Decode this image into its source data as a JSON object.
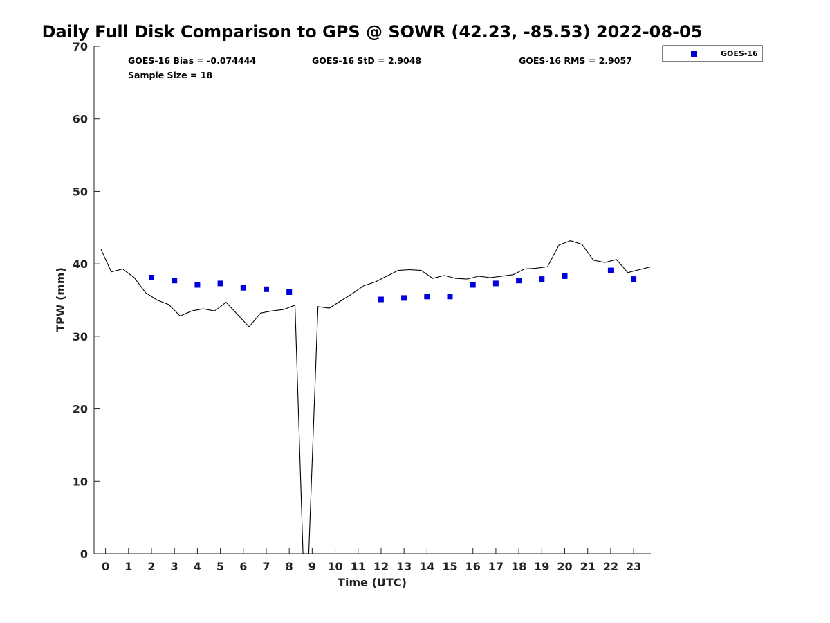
{
  "chart_data": {
    "type": "scatter",
    "title": "Daily Full Disk Comparison to GPS @ SOWR (42.23, -85.53) 2022-08-05",
    "xlabel": "Time (UTC)",
    "ylabel": "TPW (mm)",
    "xlim": [
      -0.5,
      23.75
    ],
    "ylim": [
      0,
      70
    ],
    "x_ticks": [
      0,
      1,
      2,
      3,
      4,
      5,
      6,
      7,
      8,
      9,
      10,
      11,
      12,
      13,
      14,
      15,
      16,
      17,
      18,
      19,
      20,
      21,
      22,
      23
    ],
    "y_ticks": [
      0,
      10,
      20,
      30,
      40,
      50,
      60,
      70
    ],
    "grid": false,
    "legend": {
      "position": "top-right",
      "entries": [
        "GOES-16"
      ]
    },
    "colors": {
      "goes16": "#0000dd",
      "gps": "#000000"
    },
    "stats": {
      "bias": "GOES-16 Bias = -0.074444",
      "std": "GOES-16 StD = 2.9048",
      "rms": "GOES-16 RMS = 2.9057",
      "sample": "Sample Size = 18"
    },
    "series": [
      {
        "name": "GOES-16",
        "type": "scatter",
        "x": [
          2,
          3,
          4,
          5,
          6,
          7,
          8,
          12,
          13,
          14,
          15,
          16,
          17,
          18,
          19,
          20,
          22,
          23
        ],
        "y": [
          38.1,
          37.7,
          37.1,
          37.3,
          36.7,
          36.5,
          36.1,
          35.1,
          35.3,
          35.5,
          35.5,
          37.1,
          37.3,
          37.7,
          37.9,
          38.3,
          39.1,
          37.9
        ]
      },
      {
        "type": "line",
        "x": [
          -0.2,
          0.25,
          0.75,
          1.25,
          1.75,
          2.25,
          2.75,
          3.25,
          3.75,
          4.25,
          4.75,
          5.25,
          5.75,
          6.25,
          6.75,
          7.25,
          7.75,
          8.25,
          8.6,
          8.85,
          9.25,
          9.75,
          10.25,
          10.75,
          11.25,
          11.75,
          12.25,
          12.75,
          13.25,
          13.75,
          14.25,
          14.75,
          15.25,
          15.75,
          16.25,
          16.75,
          17.25,
          17.75,
          18.25,
          18.75,
          19.25,
          19.75,
          20.25,
          20.75,
          21.25,
          21.75,
          22.25,
          22.75,
          23.25,
          23.75
        ],
        "y": [
          42.0,
          38.9,
          39.3,
          38.1,
          36.0,
          35.0,
          34.4,
          32.8,
          33.5,
          33.8,
          33.5,
          34.7,
          33.0,
          31.3,
          33.2,
          33.5,
          33.7,
          34.3,
          0,
          0,
          34.1,
          33.9,
          34.9,
          35.9,
          37.0,
          37.5,
          38.3,
          39.1,
          39.2,
          39.1,
          38.0,
          38.4,
          38.0,
          37.9,
          38.3,
          38.1,
          38.3,
          38.5,
          39.3,
          39.4,
          39.6,
          42.6,
          43.2,
          42.7,
          40.5,
          40.2,
          40.6,
          38.8,
          39.2,
          39.6
        ]
      }
    ]
  }
}
